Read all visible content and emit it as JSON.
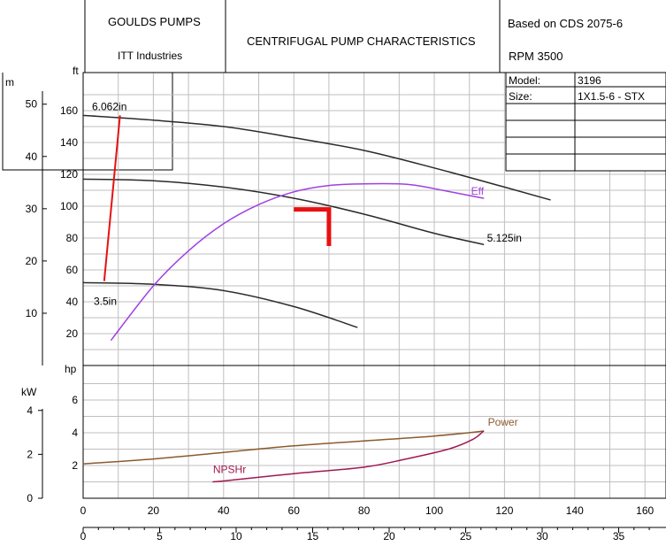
{
  "header": {
    "company": "GOULDS PUMPS",
    "division": "ITT Industries",
    "title": "CENTRIFUGAL PUMP CHARACTERISTICS",
    "based_on": "Based on CDS 2075-6",
    "rpm": "RPM  3500"
  },
  "spec_table": {
    "model_label": "Model:",
    "model_value": "3196",
    "size_label": "Size:",
    "size_value": "1X1.5-6 - STX"
  },
  "chart_data": {
    "type": "line",
    "title": "CENTRIFUGAL PUMP CHARACTERISTICS",
    "colors": {
      "head": "#2a2a2a",
      "eff": "#a040e0",
      "power": "#8b5a2b",
      "npshr": "#a01850",
      "red": "#e81010",
      "grid": "#bfbfbf"
    },
    "x_gpm": {
      "range": [
        0,
        165
      ],
      "ticks": [
        "0",
        "20",
        "40",
        "60",
        "80",
        "100",
        "120",
        "140",
        "160"
      ]
    },
    "x_m3h": {
      "range": [
        0,
        37.5
      ],
      "ticks": [
        "0",
        "5",
        "10",
        "15",
        "20",
        "25",
        "30",
        "35"
      ]
    },
    "head": {
      "axis_ft_label": "ft",
      "axis_m_label": "m",
      "ft_range": [
        0,
        172
      ],
      "ft_ticks": [
        "20",
        "40",
        "60",
        "80",
        "100",
        "120",
        "140",
        "160"
      ],
      "m_ticks": [
        "10",
        "20",
        "30",
        "40",
        "50"
      ],
      "series": [
        {
          "name": "6.062in",
          "x": [
            0,
            20,
            40,
            60,
            80,
            100,
            120,
            133
          ],
          "y": [
            157,
            154,
            150,
            143,
            135,
            124,
            112,
            104
          ]
        },
        {
          "name": "5.125in",
          "x": [
            0,
            20,
            40,
            60,
            80,
            100,
            114
          ],
          "y": [
            117,
            116,
            112,
            105,
            95,
            83,
            76
          ]
        },
        {
          "name": "3.5in",
          "x": [
            0,
            20,
            40,
            60,
            78
          ],
          "y": [
            52,
            51,
            47,
            37,
            24
          ]
        }
      ],
      "efficiency": {
        "name": "Eff",
        "x": [
          8,
          20,
          30,
          40,
          50,
          60,
          70,
          80,
          90,
          95,
          100,
          114
        ],
        "y": [
          16,
          50,
          72,
          89,
          101,
          109,
          113,
          114,
          114,
          113,
          111,
          105
        ]
      },
      "min_flow_line": {
        "x": [
          6,
          10.5
        ],
        "y": [
          53,
          157
        ]
      },
      "marker": {
        "x": [
          60,
          70,
          70
        ],
        "y": [
          98,
          98,
          75
        ]
      }
    },
    "power": {
      "axis_hp_label": "hp",
      "axis_kw_label": "kW",
      "hp_range": [
        0,
        8
      ],
      "hp_ticks": [
        "2",
        "4",
        "6"
      ],
      "kw_ticks": [
        "2",
        "4"
      ],
      "series": [
        {
          "name": "Power",
          "x": [
            0,
            20,
            40,
            60,
            80,
            100,
            114
          ],
          "y": [
            2.1,
            2.4,
            2.8,
            3.2,
            3.5,
            3.8,
            4.1
          ]
        },
        {
          "name": "NPSHr",
          "x": [
            37,
            42,
            60,
            80,
            92,
            104,
            111,
            114
          ],
          "y": [
            1.0,
            1.1,
            1.5,
            1.9,
            2.4,
            3.0,
            3.6,
            4.1
          ]
        }
      ]
    }
  }
}
